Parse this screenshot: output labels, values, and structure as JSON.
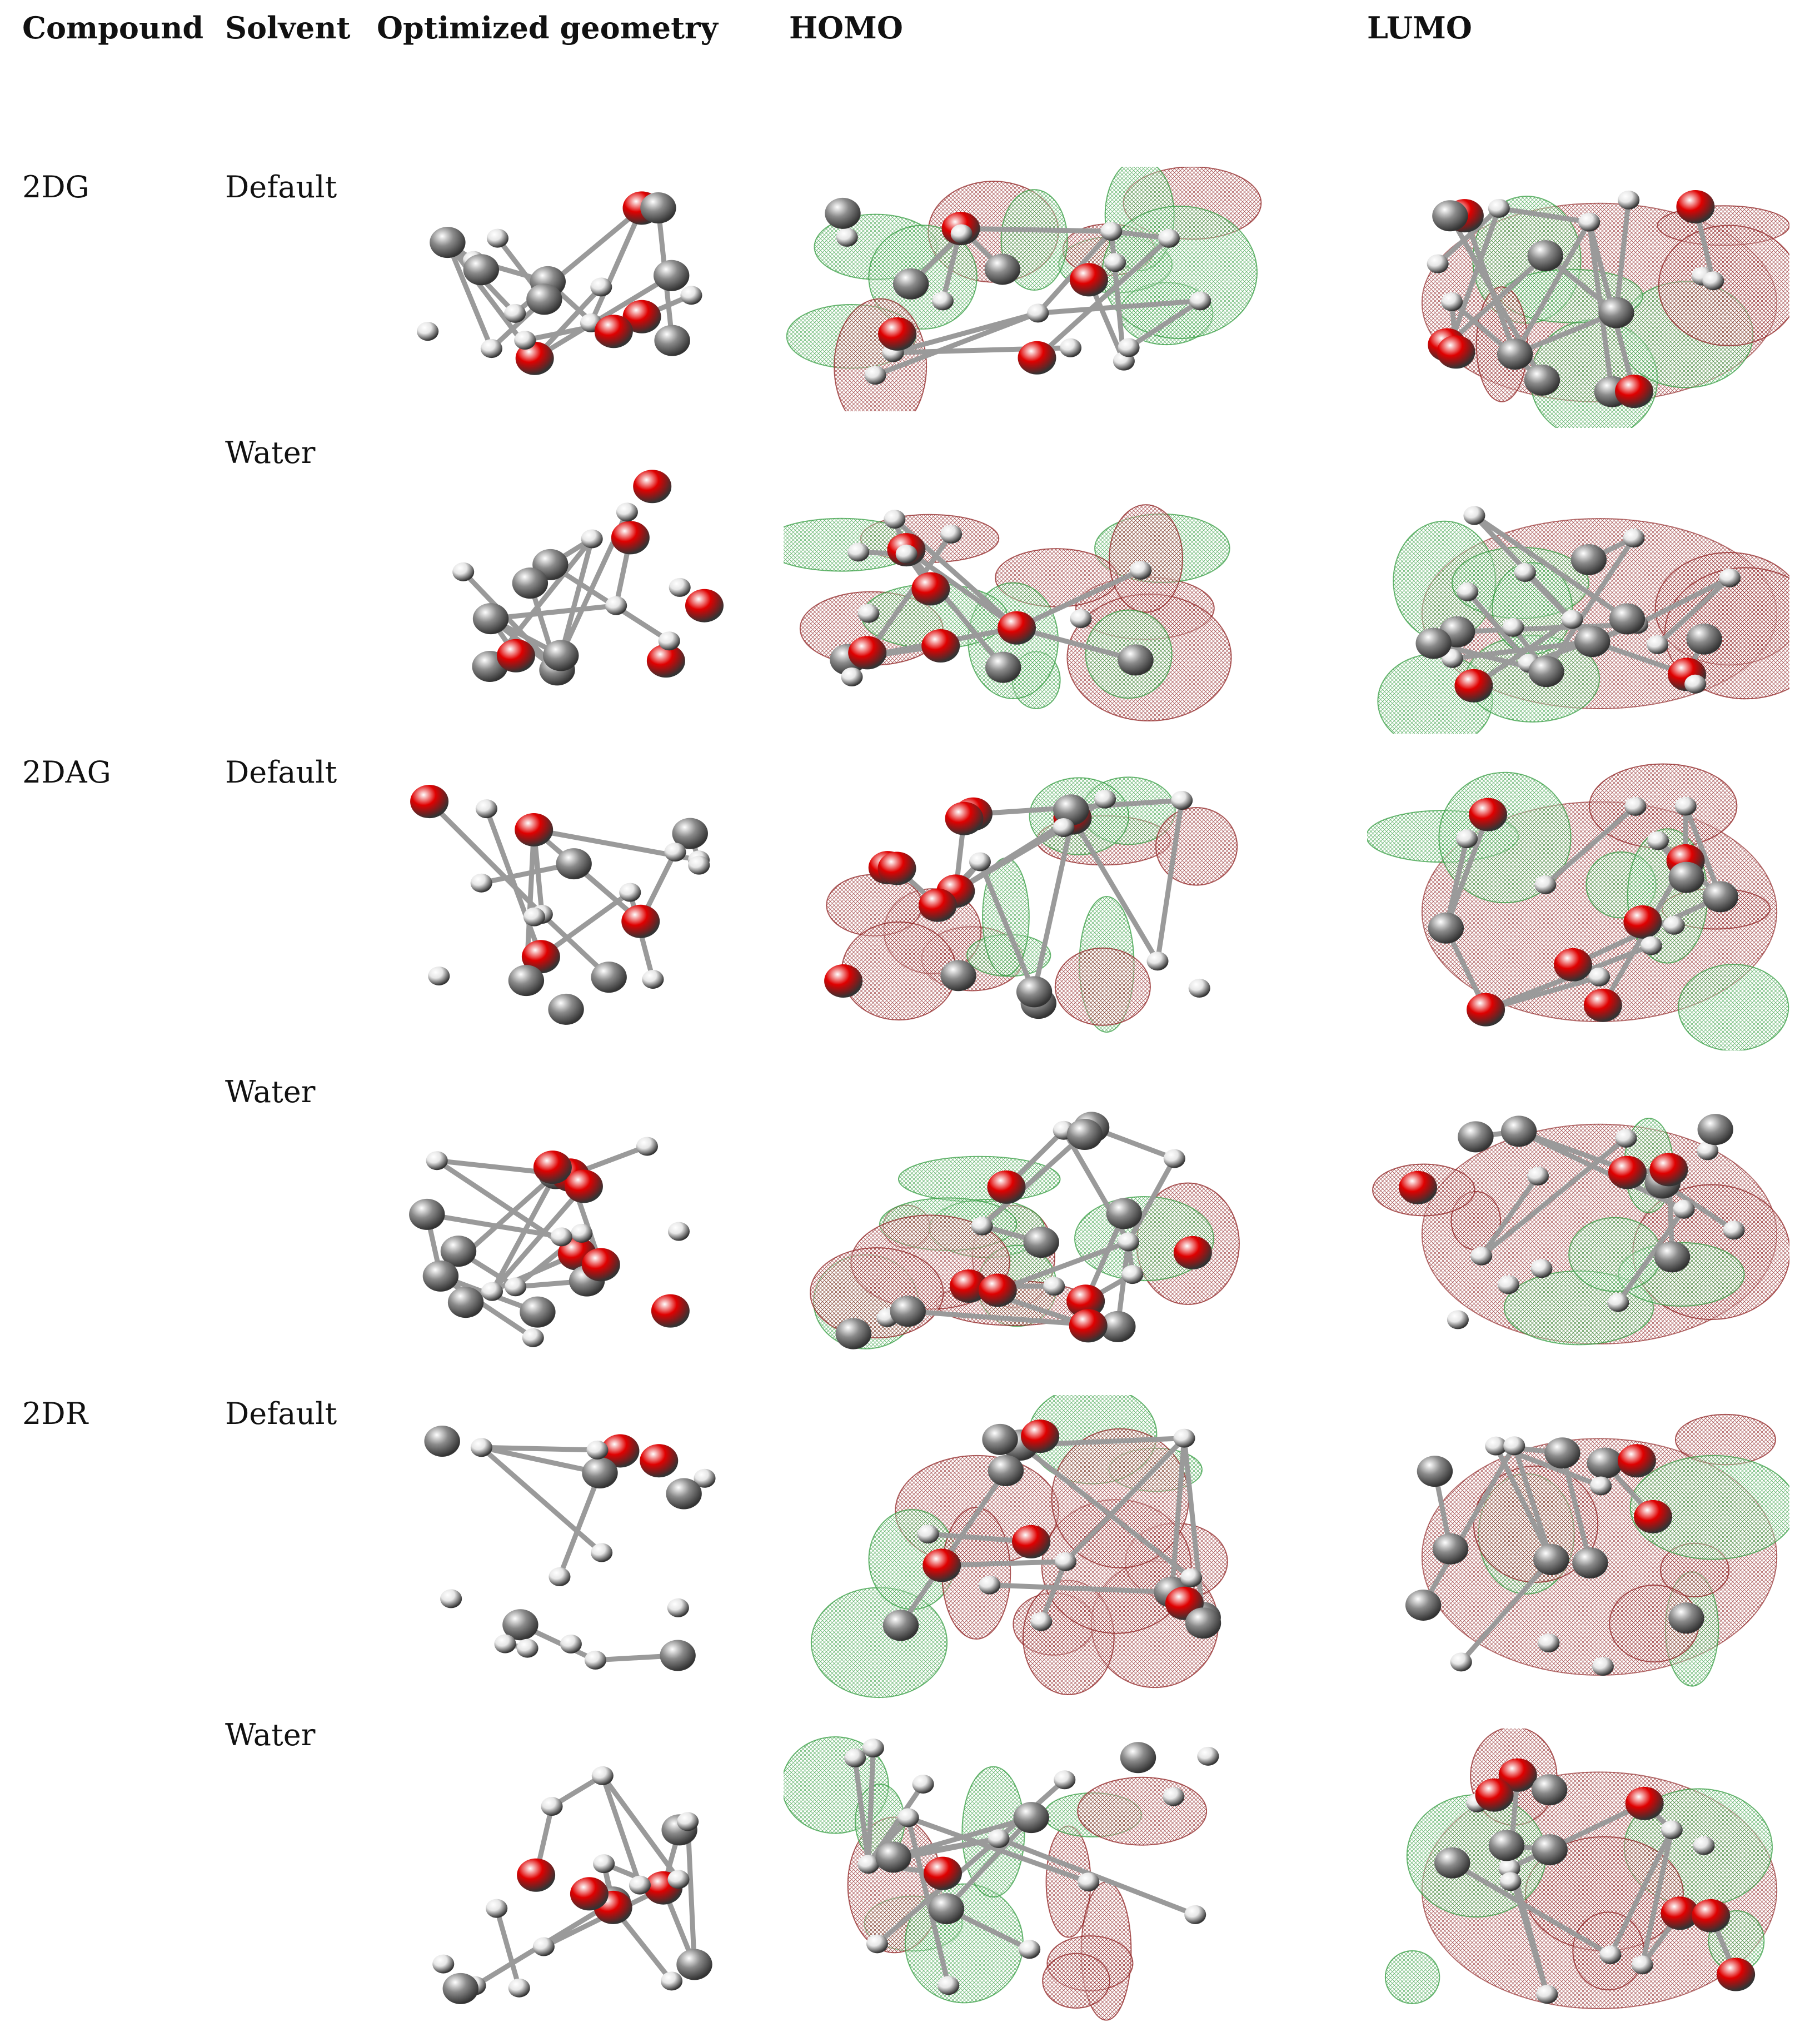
{
  "headers": {
    "compound": "Compound",
    "solvent": "Solvent",
    "geometry": "Optimized geometry",
    "homo": "HOMO",
    "lumo": "LUMO"
  },
  "rows": [
    {
      "compound": "2DG",
      "solvent": "Default"
    },
    {
      "compound": "",
      "solvent": "Water"
    },
    {
      "compound": "2DAG",
      "solvent": "Default"
    },
    {
      "compound": "",
      "solvent": "Water"
    },
    {
      "compound": "2DR",
      "solvent": "Default"
    },
    {
      "compound": "",
      "solvent": "Water"
    }
  ],
  "colors": {
    "oxygen": "#e00000",
    "carbon": "#8a8a8a",
    "hydrogen": "#e6e6e6",
    "orbital_positive": "#2e9a3a",
    "orbital_negative": "#8b1a1a"
  }
}
